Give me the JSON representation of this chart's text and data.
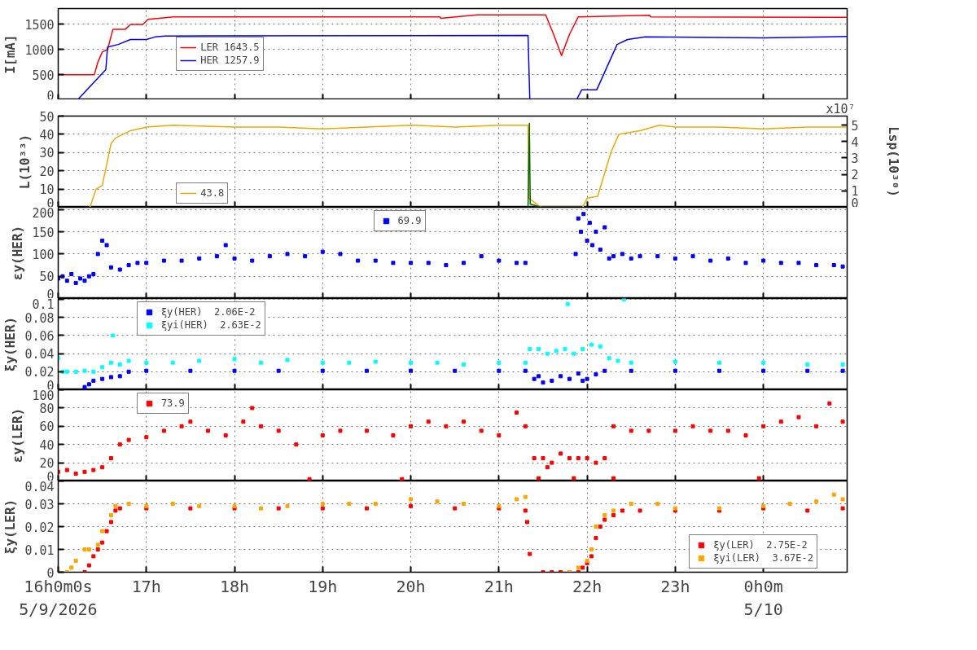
{
  "chart_data": [
    {
      "type": "line",
      "ylabel": "I[mA]",
      "xlim": [
        16,
        24.95
      ],
      "ylim": [
        0,
        1815
      ],
      "yticks": [
        0,
        500,
        1000,
        1500
      ],
      "xticks": [
        16,
        17,
        18,
        19,
        20,
        21,
        22,
        23,
        24
      ],
      "tick_labels": "y",
      "grid": true,
      "legend": "left",
      "line_style": "solid",
      "series": [
        {
          "name": "LER 1643.5",
          "color": "#ff0000",
          "x": [
            16.0,
            16.41,
            16.45,
            16.5,
            16.56,
            16.62,
            16.76,
            16.82,
            16.96,
            17.02,
            17.31,
            20.33,
            20.34,
            20.75,
            21.53,
            21.62,
            21.71,
            21.8,
            21.9,
            22.71,
            22.72,
            24.95
          ],
          "values": [
            500,
            500,
            750,
            950,
            1000,
            1400,
            1400,
            1500,
            1500,
            1600,
            1650,
            1650,
            1620,
            1690,
            1690,
            1300,
            880,
            1300,
            1650,
            1680,
            1650,
            1640
          ]
        },
        {
          "name": "HER 1257.9",
          "color": "#0000ff",
          "x": [
            16.22,
            16.54,
            16.56,
            16.68,
            16.82,
            17.0,
            17.1,
            17.21,
            21.33,
            21.35,
            21.88,
            21.94,
            22.11,
            22.34,
            22.46,
            22.66,
            23.5,
            24.0,
            24.95
          ],
          "values": [
            0,
            600,
            1050,
            1100,
            1200,
            1200,
            1250,
            1270,
            1280,
            0,
            0,
            200,
            200,
            1100,
            1200,
            1250,
            1240,
            1230,
            1260
          ]
        }
      ]
    },
    {
      "type": "line",
      "ylabel": "L(10³³)",
      "y2label": "Lsp(10³⁰)",
      "annotations": [
        "x10⁷"
      ],
      "xlim": [
        16,
        24.95
      ],
      "ylim": [
        0,
        50
      ],
      "yticks": [
        0,
        10,
        20,
        30,
        40,
        50
      ],
      "y2lim": [
        0,
        5.55
      ],
      "y2ticks": [
        0,
        1,
        2,
        3,
        4,
        5
      ],
      "xticks": [
        16,
        17,
        18,
        19,
        20,
        21,
        22,
        23,
        24
      ],
      "tick_labels": "y",
      "grid": true,
      "legend": "bottom left",
      "line_style": "solid",
      "series": [
        {
          "name": "43.8",
          "color": "#f0a800",
          "x": [
            16.36,
            16.43,
            16.5,
            16.6,
            16.65,
            16.82,
            17.0,
            17.3,
            18.0,
            18.5,
            19.0,
            19.5,
            20.0,
            20.5,
            21.0,
            21.33,
            21.34,
            21.48,
            21.95,
            22.0,
            22.12,
            22.27,
            22.36,
            22.6,
            22.82,
            23.0,
            23.5,
            24.0,
            24.5,
            24.95
          ],
          "values": [
            0,
            10,
            12,
            35,
            38,
            42,
            44,
            45,
            44,
            44,
            43,
            44,
            45,
            44,
            45,
            45,
            5,
            0,
            0,
            5,
            6,
            30,
            40,
            42,
            45,
            44,
            44,
            43,
            44,
            44
          ]
        },
        {
          "color": "#006400",
          "axis": "y2",
          "x": [
            21.33,
            21.345,
            21.355,
            21.48
          ],
          "values": [
            0,
            5.1,
            0.2,
            0
          ]
        }
      ]
    },
    {
      "type": "scatter",
      "ylabel": "εy(HER)",
      "xlim": [
        16,
        24.95
      ],
      "ylim": [
        0,
        205
      ],
      "yticks": [
        0,
        50,
        100,
        150,
        200
      ],
      "xticks": [
        16,
        17,
        18,
        19,
        20,
        21,
        22,
        23,
        24
      ],
      "tick_labels": "y",
      "grid": true,
      "legend": "top",
      "marker": "square",
      "series": [
        {
          "name": "69.9",
          "color": "#0000ff",
          "x": [
            16.0,
            16.05,
            16.1,
            16.15,
            16.2,
            16.25,
            16.3,
            16.35,
            16.4,
            16.45,
            16.5,
            16.55,
            16.6,
            16.7,
            16.8,
            16.9,
            17.0,
            17.2,
            17.4,
            17.6,
            17.8,
            17.9,
            18.0,
            18.2,
            18.4,
            18.6,
            18.8,
            19.0,
            19.2,
            19.4,
            19.6,
            19.8,
            20.0,
            20.2,
            20.4,
            20.6,
            20.8,
            21.0,
            21.2,
            21.3,
            21.87,
            21.9,
            21.93,
            21.96,
            22.0,
            22.03,
            22.06,
            22.1,
            22.15,
            22.2,
            22.25,
            22.3,
            22.4,
            22.5,
            22.6,
            22.8,
            23.0,
            23.2,
            23.4,
            23.6,
            23.8,
            24.0,
            24.2,
            24.4,
            24.6,
            24.8,
            24.9
          ],
          "values": [
            45,
            50,
            40,
            55,
            35,
            45,
            40,
            50,
            55,
            100,
            130,
            120,
            70,
            65,
            75,
            80,
            80,
            85,
            85,
            90,
            95,
            120,
            90,
            85,
            95,
            100,
            95,
            105,
            100,
            85,
            85,
            80,
            80,
            80,
            75,
            80,
            95,
            85,
            80,
            80,
            100,
            180,
            150,
            190,
            130,
            170,
            120,
            150,
            110,
            160,
            90,
            95,
            100,
            90,
            95,
            95,
            90,
            95,
            85,
            90,
            80,
            85,
            80,
            80,
            75,
            75,
            72
          ]
        }
      ]
    },
    {
      "type": "scatter",
      "ylabel": "ξy(HER)",
      "xlim": [
        16,
        24.95
      ],
      "ylim": [
        0,
        0.101
      ],
      "yticks": [
        0,
        0.02,
        0.04,
        0.06,
        0.08,
        0.1
      ],
      "xticks": [
        16,
        17,
        18,
        19,
        20,
        21,
        22,
        23,
        24
      ],
      "tick_labels": "y",
      "grid": true,
      "legend": "top left",
      "marker": "square",
      "series": [
        {
          "name": "ξy(HER)  2.06E-2",
          "color": "#0000ff",
          "x": [
            16.3,
            16.35,
            16.4,
            16.5,
            16.6,
            16.7,
            16.8,
            17.0,
            17.5,
            18.0,
            18.5,
            19.0,
            19.5,
            20.0,
            20.5,
            21.0,
            21.3,
            21.4,
            21.45,
            21.5,
            21.6,
            21.7,
            21.8,
            21.9,
            21.95,
            22.0,
            22.1,
            22.2,
            22.5,
            23.0,
            23.5,
            24.0,
            24.5,
            24.9
          ],
          "values": [
            0.003,
            0.006,
            0.01,
            0.012,
            0.014,
            0.015,
            0.02,
            0.021,
            0.021,
            0.021,
            0.021,
            0.021,
            0.021,
            0.021,
            0.021,
            0.021,
            0.021,
            0.012,
            0.015,
            0.008,
            0.01,
            0.015,
            0.012,
            0.018,
            0.01,
            0.012,
            0.017,
            0.021,
            0.021,
            0.021,
            0.021,
            0.021,
            0.021,
            0.021
          ]
        },
        {
          "name": "ξyi(HER)  2.63E-2",
          "color": "#00ffff",
          "x": [
            16.0,
            16.05,
            16.1,
            16.2,
            16.3,
            16.4,
            16.5,
            16.6,
            16.7,
            16.8,
            17.0,
            17.3,
            17.6,
            18.0,
            18.3,
            18.6,
            19.0,
            19.3,
            19.6,
            20.0,
            20.3,
            20.6,
            21.0,
            21.3,
            21.35,
            21.45,
            21.55,
            21.65,
            21.75,
            21.85,
            21.95,
            22.05,
            22.15,
            22.25,
            22.35,
            22.5,
            23.0,
            23.5,
            24.0,
            24.5,
            24.9,
            16.62,
            21.78,
            22.42
          ],
          "values": [
            0.035,
            0.02,
            0.02,
            0.02,
            0.021,
            0.02,
            0.025,
            0.03,
            0.028,
            0.032,
            0.03,
            0.03,
            0.032,
            0.034,
            0.03,
            0.033,
            0.03,
            0.03,
            0.031,
            0.03,
            0.03,
            0.028,
            0.03,
            0.03,
            0.045,
            0.045,
            0.04,
            0.043,
            0.045,
            0.04,
            0.045,
            0.05,
            0.048,
            0.035,
            0.032,
            0.03,
            0.031,
            0.03,
            0.03,
            0.028,
            0.028,
            0.06,
            0.095,
            0.1
          ]
        }
      ]
    },
    {
      "type": "scatter",
      "ylabel": "εy(LER)",
      "xlim": [
        16,
        24.95
      ],
      "ylim": [
        0,
        100
      ],
      "yticks": [
        0,
        20,
        40,
        60,
        80,
        100
      ],
      "xticks": [
        16,
        17,
        18,
        19,
        20,
        21,
        22,
        23,
        24
      ],
      "tick_labels": "y",
      "grid": true,
      "legend": "top left",
      "marker": "square",
      "series": [
        {
          "name": "73.9",
          "color": "#ff0000",
          "x": [
            16.0,
            16.1,
            16.2,
            16.3,
            16.4,
            16.5,
            16.6,
            16.7,
            16.8,
            17.0,
            17.2,
            17.4,
            17.5,
            17.7,
            17.9,
            18.1,
            18.2,
            18.3,
            18.5,
            18.7,
            19.0,
            19.2,
            19.5,
            19.8,
            20.0,
            20.2,
            20.4,
            20.6,
            20.8,
            21.0,
            21.2,
            21.3,
            21.4,
            21.5,
            21.55,
            21.6,
            21.7,
            21.8,
            21.9,
            22.0,
            22.1,
            22.2,
            22.3,
            22.5,
            22.7,
            23.0,
            23.2,
            23.4,
            23.6,
            23.8,
            24.0,
            24.2,
            24.4,
            24.6,
            24.75,
            24.9,
            18.85,
            19.9,
            21.45,
            21.85,
            22.3,
            23.95
          ],
          "values": [
            10,
            12,
            8,
            10,
            12,
            15,
            25,
            40,
            45,
            48,
            55,
            60,
            65,
            55,
            50,
            65,
            80,
            60,
            55,
            40,
            50,
            55,
            55,
            50,
            60,
            65,
            60,
            65,
            55,
            50,
            75,
            60,
            25,
            25,
            15,
            20,
            30,
            25,
            25,
            25,
            20,
            25,
            60,
            55,
            55,
            55,
            60,
            55,
            55,
            50,
            60,
            65,
            70,
            60,
            85,
            65,
            2,
            2,
            3,
            3,
            3,
            3
          ]
        }
      ]
    },
    {
      "type": "scatter",
      "ylabel": "ξy(LER)",
      "xlim": [
        16,
        24.95
      ],
      "ylim": [
        0,
        0.04
      ],
      "yticks": [
        0,
        0.01,
        0.02,
        0.03,
        0.04
      ],
      "xticks": [
        {
          "value": 16,
          "label": "16h0m0s\n5/9/2026"
        },
        {
          "value": 17,
          "label": "17h"
        },
        {
          "value": 18,
          "label": "18h"
        },
        {
          "value": 19,
          "label": "19h"
        },
        {
          "value": 20,
          "label": "20h"
        },
        {
          "value": 21,
          "label": "21h"
        },
        {
          "value": 22,
          "label": "22h"
        },
        {
          "value": 23,
          "label": "23h"
        },
        {
          "value": 24,
          "label": "0h0m\n5/10"
        }
      ],
      "grid": true,
      "legend": "bottom right",
      "marker": "square",
      "series": [
        {
          "name": "ξy(LER)  2.75E-2",
          "color": "#ff0000",
          "x": [
            16.3,
            16.35,
            16.4,
            16.45,
            16.5,
            16.55,
            16.6,
            16.65,
            16.7,
            17.0,
            17.5,
            18.0,
            18.5,
            19.0,
            19.5,
            20.0,
            20.5,
            21.0,
            21.3,
            21.5,
            21.6,
            21.7,
            21.8,
            21.9,
            21.95,
            22.0,
            22.05,
            22.1,
            22.15,
            22.2,
            22.3,
            22.4,
            22.6,
            23.0,
            23.5,
            24.0,
            24.5,
            24.9,
            21.35,
            21.32
          ],
          "values": [
            0,
            0.003,
            0.007,
            0.01,
            0.013,
            0.018,
            0.022,
            0.027,
            0.028,
            0.028,
            0.028,
            0.028,
            0.028,
            0.028,
            0.028,
            0.029,
            0.028,
            0.028,
            0.027,
            0,
            0,
            0,
            0,
            0,
            0.002,
            0.004,
            0.007,
            0.015,
            0.02,
            0.023,
            0.025,
            0.027,
            0.027,
            0.027,
            0.027,
            0.028,
            0.027,
            0.028,
            0.008,
            0.022
          ]
        },
        {
          "name": "ξyi(LER)  3.67E-2",
          "color": "#ffa500",
          "x": [
            16.0,
            16.1,
            16.15,
            16.2,
            16.3,
            16.35,
            16.45,
            16.5,
            16.6,
            16.65,
            16.8,
            17.0,
            17.3,
            17.6,
            18.0,
            18.3,
            18.6,
            19.0,
            19.3,
            19.6,
            20.0,
            20.3,
            20.6,
            21.0,
            21.2,
            21.3,
            21.8,
            21.9,
            22.0,
            22.05,
            22.1,
            22.2,
            22.3,
            22.5,
            22.8,
            23.0,
            23.5,
            24.0,
            24.3,
            24.6,
            24.8,
            24.9
          ],
          "values": [
            0,
            0,
            0.002,
            0.005,
            0.01,
            0.01,
            0.012,
            0.018,
            0.025,
            0.029,
            0.03,
            0.029,
            0.03,
            0.029,
            0.029,
            0.028,
            0.029,
            0.03,
            0.03,
            0.03,
            0.032,
            0.031,
            0.03,
            0.029,
            0.032,
            0.033,
            0,
            0.002,
            0.005,
            0.01,
            0.02,
            0.025,
            0.027,
            0.03,
            0.03,
            0.028,
            0.028,
            0.029,
            0.03,
            0.031,
            0.034,
            0.032
          ]
        }
      ]
    }
  ]
}
